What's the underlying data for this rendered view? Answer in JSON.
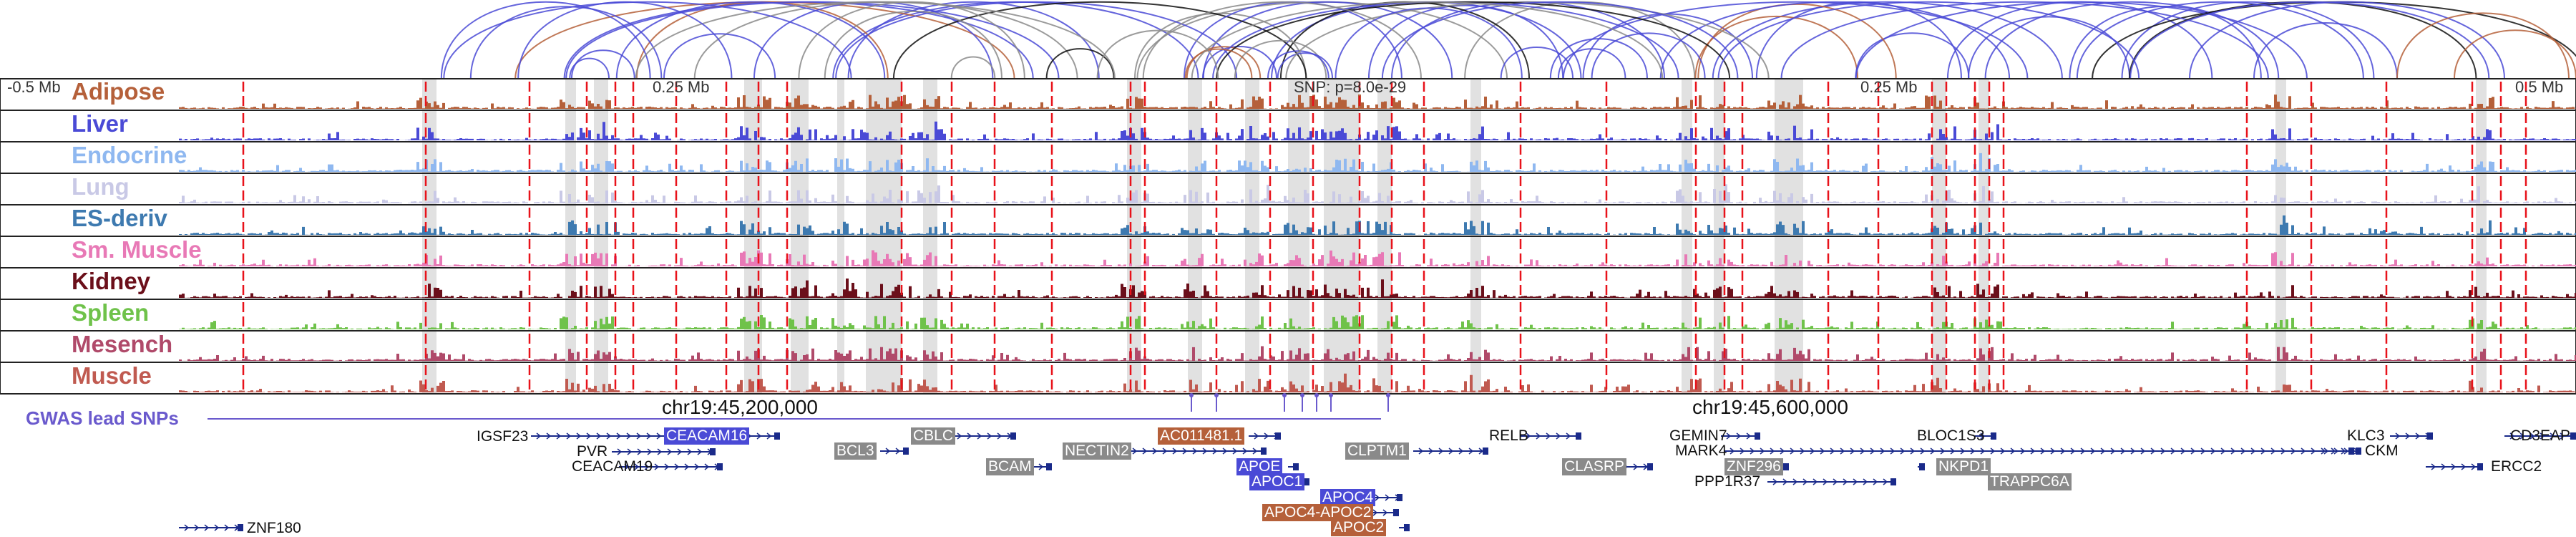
{
  "colors": {
    "arc_blue": "#4a4ad6",
    "arc_grey": "#8a8a8a",
    "arc_black": "#111111",
    "arc_brown": "#b5603a",
    "boundary_red": "#e8121a",
    "highlight_grey": "#d9d9d9",
    "gwas": "#6a5acd",
    "gene_line": "#1a2a8a"
  },
  "scale": {
    "left_label": "-0.5 Mb",
    "mid_left_label": "0.25 Mb",
    "snp_label": "SNP: p=8.0e-29",
    "mid_right_label": "0.25 Mb",
    "right_label": "0.5 Mb"
  },
  "tracks": [
    {
      "name": "Adipose",
      "color": "#b5603a"
    },
    {
      "name": "Liver",
      "color": "#4a4ad6"
    },
    {
      "name": "Endocrine",
      "color": "#8fb8f0"
    },
    {
      "name": "Lung",
      "color": "#c9c9e6"
    },
    {
      "name": "ES-deriv",
      "color": "#3e7ab0"
    },
    {
      "name": "Sm. Muscle",
      "color": "#e879b6"
    },
    {
      "name": "Kidney",
      "color": "#6b0f1a"
    },
    {
      "name": "Spleen",
      "color": "#6fc24a"
    },
    {
      "name": "Mesench",
      "color": "#b04a6a"
    },
    {
      "name": "Muscle",
      "color": "#c05a50"
    }
  ],
  "coords": {
    "left": "chr19:45,200,000",
    "right": "chr19:45,600,000"
  },
  "gwas": {
    "label": "GWAS lead SNPs"
  },
  "genes": [
    {
      "name": "IGSF23",
      "box": false
    },
    {
      "name": "CEACAM16",
      "box": true,
      "color": "#4a4ad6"
    },
    {
      "name": "PVR",
      "box": false
    },
    {
      "name": "CEACAM19",
      "box": false
    },
    {
      "name": "BCL3",
      "box": true,
      "color": "#8a8a8a"
    },
    {
      "name": "CBLC",
      "box": true,
      "color": "#8a8a8a"
    },
    {
      "name": "BCAM",
      "box": true,
      "color": "#8a8a8a"
    },
    {
      "name": "NECTIN2",
      "box": true,
      "color": "#8a8a8a"
    },
    {
      "name": "AC011481.1",
      "box": true,
      "color": "#b5603a"
    },
    {
      "name": "APOE",
      "box": true,
      "color": "#4a4ad6"
    },
    {
      "name": "APOC1",
      "box": true,
      "color": "#4a4ad6"
    },
    {
      "name": "APOC4",
      "box": true,
      "color": "#4a4ad6"
    },
    {
      "name": "APOC4-APOC2",
      "box": true,
      "color": "#b5603a"
    },
    {
      "name": "APOC2",
      "box": true,
      "color": "#b5603a"
    },
    {
      "name": "CLPTM1",
      "box": true,
      "color": "#8a8a8a"
    },
    {
      "name": "RELB",
      "box": false
    },
    {
      "name": "CLASRP",
      "box": true,
      "color": "#8a8a8a"
    },
    {
      "name": "GEMIN7",
      "box": false
    },
    {
      "name": "MARK4",
      "box": false
    },
    {
      "name": "ZNF296",
      "box": true,
      "color": "#8a8a8a"
    },
    {
      "name": "PPP1R37",
      "box": false
    },
    {
      "name": "BLOC1S3",
      "box": false
    },
    {
      "name": "NKPD1",
      "box": true,
      "color": "#8a8a8a"
    },
    {
      "name": "TRAPPC6A",
      "box": true,
      "color": "#8a8a8a"
    },
    {
      "name": "KLC3",
      "box": false
    },
    {
      "name": "CKM",
      "box": false
    },
    {
      "name": "CD3EAP",
      "box": false
    },
    {
      "name": "ERCC2",
      "box": false
    },
    {
      "name": "ZNF180",
      "box": false
    }
  ]
}
